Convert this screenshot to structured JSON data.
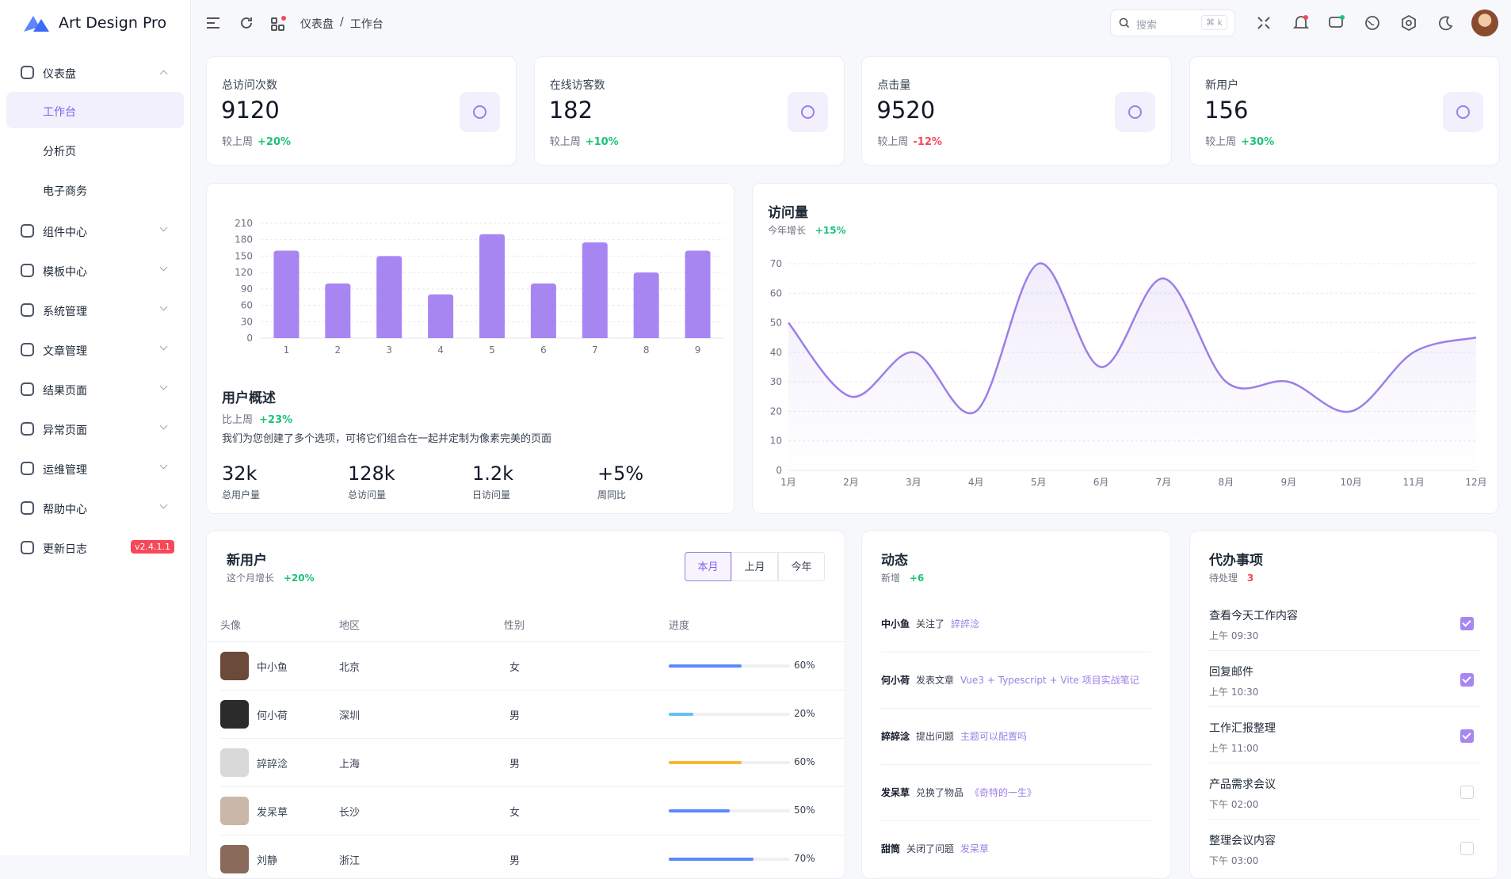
{
  "brand": "Art Design Pro",
  "menu": [
    {
      "label": "仪表盘",
      "children": [
        "工作台",
        "分析页",
        "电子商务"
      ]
    },
    {
      "label": "组件中心"
    },
    {
      "label": "模板中心"
    },
    {
      "label": "系统管理"
    },
    {
      "label": "文章管理"
    },
    {
      "label": "结果页面"
    },
    {
      "label": "异常页面"
    },
    {
      "label": "运维管理"
    },
    {
      "label": "帮助中心"
    },
    {
      "label": "更新日志",
      "badge": "v2.4.1.1"
    }
  ],
  "breadcrumb": {
    "items": [
      "仪表盘",
      "工作台"
    ],
    "separator": "/"
  },
  "search": {
    "placeholder": "搜索",
    "shortcut": "⌘ k"
  },
  "stats": [
    {
      "title": "总访问次数",
      "value": 9120,
      "compare_label": "较上周",
      "change": "+20%"
    },
    {
      "title": "在线访客数",
      "value": 182,
      "compare_label": "较上周",
      "change": "+10%"
    },
    {
      "title": "点击量",
      "value": 9520,
      "compare_label": "较上周",
      "change": "-12%"
    },
    {
      "title": "新用户",
      "value": 156,
      "compare_label": "较上周",
      "change": "+30%"
    }
  ],
  "user_overview": {
    "title": "用户概述",
    "compare_label": "比上周",
    "change": "+23%",
    "description": "我们为您创建了多个选项，可将它们组合在一起并定制为像素完美的页面",
    "metrics": [
      {
        "value": "32k",
        "label": "总用户量"
      },
      {
        "value": "128k",
        "label": "总访问量"
      },
      {
        "value": "1.2k",
        "label": "日访问量"
      },
      {
        "value": "+5%",
        "label": "周同比"
      }
    ],
    "chart": {
      "type": "bar",
      "categories": [
        "1",
        "2",
        "3",
        "4",
        "5",
        "6",
        "7",
        "8",
        "9"
      ],
      "values": [
        160,
        100,
        150,
        80,
        190,
        100,
        175,
        120,
        160
      ],
      "ylim": [
        0,
        210
      ],
      "yticks": [
        0,
        30,
        60,
        90,
        120,
        150,
        180,
        210
      ],
      "color": "#a886f2",
      "grid": true
    }
  },
  "visits": {
    "title": "访问量",
    "compare_label": "今年增长",
    "change": "+15%",
    "chart": {
      "type": "line",
      "categories": [
        "1月",
        "2月",
        "3月",
        "4月",
        "5月",
        "6月",
        "7月",
        "8月",
        "9月",
        "10月",
        "11月",
        "12月"
      ],
      "values": [
        50,
        25,
        40,
        20,
        70,
        35,
        65,
        30,
        30,
        20,
        40,
        45
      ],
      "ylim": [
        0,
        70
      ],
      "yticks": [
        0,
        10,
        20,
        30,
        40,
        50,
        60,
        70
      ],
      "color": "#9b7fe6",
      "grid": true
    }
  },
  "new_users": {
    "title": "新用户",
    "compare_label": "这个月增长",
    "change": "+20%",
    "tabs": [
      "本月",
      "上月",
      "今年"
    ],
    "columns": [
      "头像",
      "地区",
      "性别",
      "进度"
    ],
    "rows": [
      {
        "name": "中小鱼",
        "region": "北京",
        "gender": "女",
        "progress": 60,
        "progress_label": "60%",
        "color": "#5d87ff"
      },
      {
        "name": "何小荷",
        "region": "深圳",
        "gender": "男",
        "progress": 20,
        "progress_label": "20%",
        "color": "#60c2f5"
      },
      {
        "name": "誶誶淰",
        "region": "上海",
        "gender": "男",
        "progress": 60,
        "progress_label": "60%",
        "color": "#f7b731"
      },
      {
        "name": "发呆草",
        "region": "长沙",
        "gender": "女",
        "progress": 50,
        "progress_label": "50%",
        "color": "#5d87ff"
      },
      {
        "name": "刘静",
        "region": "浙江",
        "gender": "男",
        "progress": 70,
        "progress_label": "70%",
        "color": "#5d87ff"
      }
    ]
  },
  "activity": {
    "title": "动态",
    "subtitle": "新增",
    "count": "+6",
    "items": [
      {
        "user": "中小鱼",
        "action": "关注了",
        "target": "誶誶淰"
      },
      {
        "user": "何小荷",
        "action": "发表文章",
        "target": "Vue3 + Typescript + Vite 项目实战笔记"
      },
      {
        "user": "誶誶淰",
        "action": "提出问题",
        "target": "主题可以配置吗"
      },
      {
        "user": "发呆草",
        "action": "兑换了物品",
        "target": "《奇特的一生》"
      },
      {
        "user": "甜筒",
        "action": "关闭了问题",
        "target": "发呆草"
      }
    ]
  },
  "todo": {
    "title": "代办事项",
    "subtitle": "待处理",
    "count": 3,
    "items": [
      {
        "title": "查看今天工作内容",
        "time": "上午 09:30",
        "done": true
      },
      {
        "title": "回复邮件",
        "time": "上午 10:30",
        "done": true
      },
      {
        "title": "工作汇报整理",
        "time": "上午 11:00",
        "done": true
      },
      {
        "title": "产品需求会议",
        "time": "下午 02:00",
        "done": false
      },
      {
        "title": "整理会议内容",
        "time": "下午 03:00",
        "done": false
      }
    ]
  }
}
